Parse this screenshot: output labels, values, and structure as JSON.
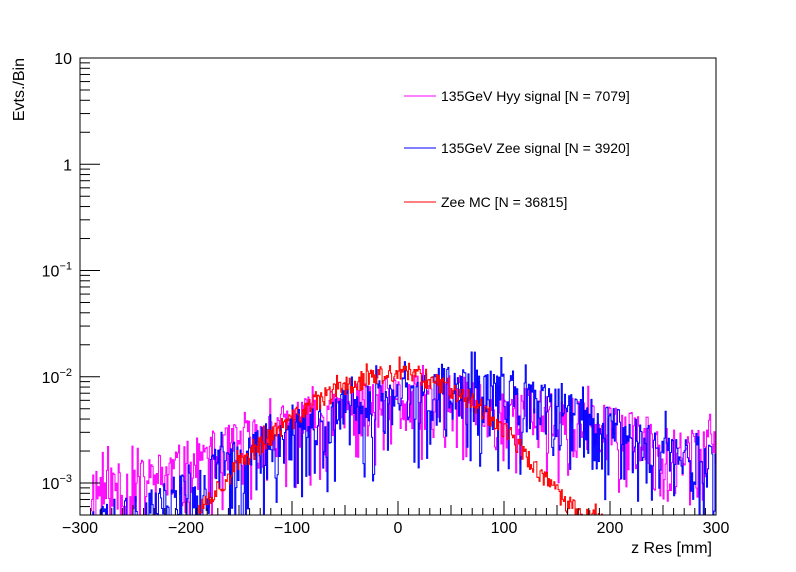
{
  "chart_data": {
    "type": "line",
    "style": "histogram-step",
    "title": "",
    "xlabel": "z Res [mm]",
    "ylabel": "Evts./Bin",
    "xlim": [
      -300,
      300
    ],
    "ylim": [
      0.0005,
      10
    ],
    "yscale": "log",
    "grid": false,
    "legend_position": "top-right",
    "x_ticks": [
      {
        "value": -300,
        "label": "−300"
      },
      {
        "value": -200,
        "label": "−200"
      },
      {
        "value": -100,
        "label": "−100"
      },
      {
        "value": 0,
        "label": "0"
      },
      {
        "value": 100,
        "label": "100"
      },
      {
        "value": 200,
        "label": "200"
      },
      {
        "value": 300,
        "label": "300"
      }
    ],
    "y_ticks": [
      {
        "value": 10,
        "base": "10",
        "exp": ""
      },
      {
        "value": 1,
        "base": "1",
        "exp": ""
      },
      {
        "value": 0.1,
        "base": "10",
        "exp": "−1"
      },
      {
        "value": 0.01,
        "base": "10",
        "exp": "−2"
      },
      {
        "value": 0.001,
        "base": "10",
        "exp": "−3"
      }
    ],
    "series": [
      {
        "name": "135GeV Hyy signal [N = 7079]",
        "color": "#ff00ff",
        "centers": [
          -250,
          -200,
          -150,
          -100,
          -50,
          0,
          50,
          100,
          150,
          200,
          250,
          290
        ],
        "values": [
          0.0009,
          0.0014,
          0.0022,
          0.0034,
          0.0047,
          0.0058,
          0.006,
          0.0052,
          0.004,
          0.003,
          0.0022,
          0.0018
        ]
      },
      {
        "name": "135GeV Zee signal [N = 3920]",
        "color": "#0000ff",
        "centers": [
          -250,
          -200,
          -150,
          -100,
          -50,
          0,
          50,
          100,
          150,
          200,
          250,
          290
        ],
        "values": [
          0.0004,
          0.0008,
          0.0016,
          0.0028,
          0.0043,
          0.0058,
          0.007,
          0.0062,
          0.0044,
          0.003,
          0.002,
          0.0015
        ]
      },
      {
        "name": "Zee MC [N = 36815]",
        "color": "#ff0000",
        "centers": [
          -200,
          -175,
          -150,
          -125,
          -100,
          -75,
          -50,
          -25,
          0,
          25,
          50,
          75,
          100,
          125,
          150,
          175,
          200
        ],
        "values": [
          0.0004,
          0.0008,
          0.0015,
          0.0026,
          0.004,
          0.006,
          0.0082,
          0.01,
          0.0108,
          0.01,
          0.008,
          0.0055,
          0.0033,
          0.0016,
          0.0008,
          0.0005,
          0.0004
        ]
      }
    ]
  }
}
